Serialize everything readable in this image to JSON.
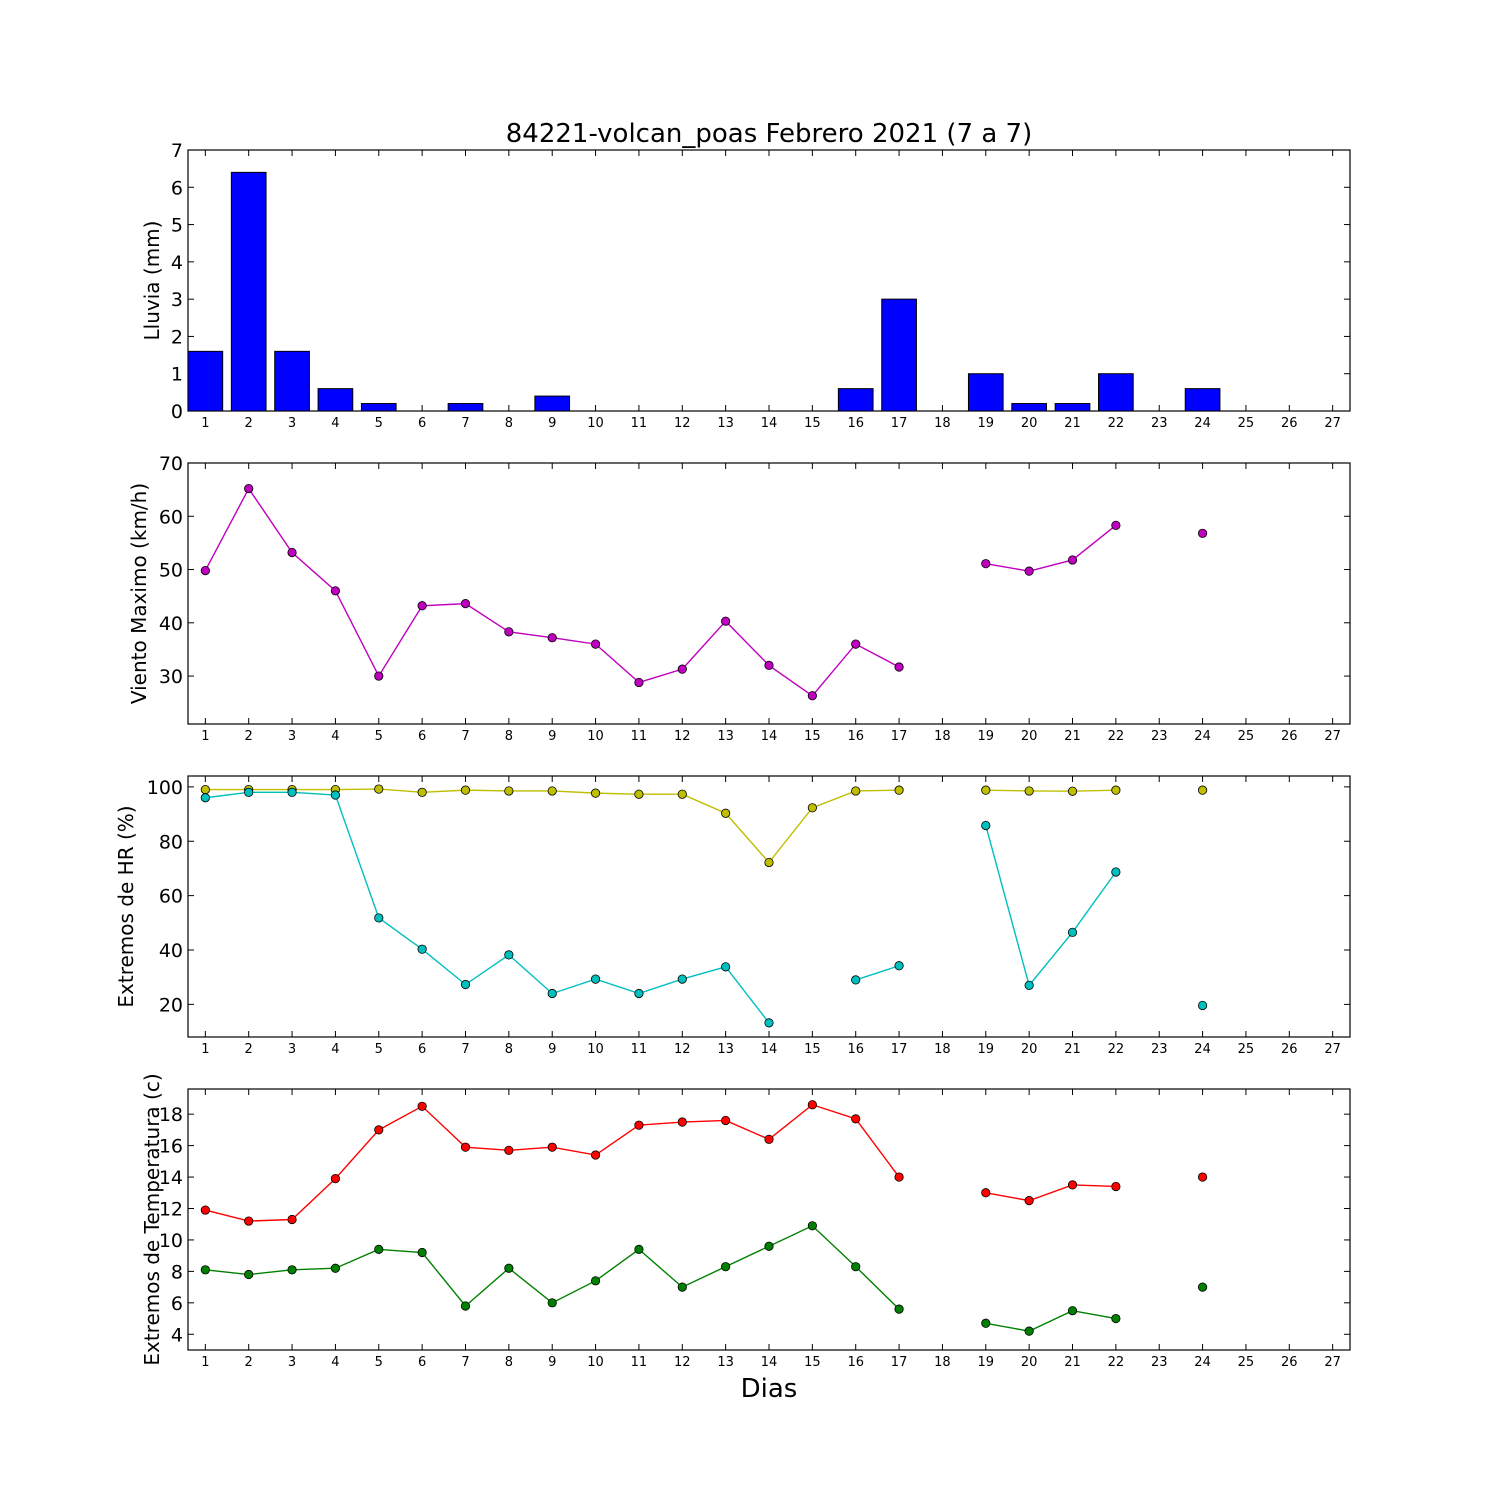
{
  "chart_data": [
    {
      "type": "bar",
      "title": "84221-volcan_poas Febrero 2021  (7 a 7)",
      "ylabel": "Lluvia (mm)",
      "ylim": [
        0,
        7
      ],
      "yticks": [
        0,
        1,
        2,
        3,
        4,
        5,
        6,
        7
      ],
      "categories": [
        "1",
        "2",
        "3",
        "4",
        "5",
        "6",
        "7",
        "8",
        "9",
        "10",
        "11",
        "12",
        "13",
        "14",
        "15",
        "16",
        "17",
        "18",
        "19",
        "20",
        "21",
        "22",
        "23",
        "24",
        "25",
        "26",
        "27"
      ],
      "values": [
        1.6,
        6.4,
        1.6,
        0.6,
        0.2,
        0,
        0.2,
        0,
        0.4,
        0,
        0,
        0,
        0,
        0,
        0,
        0.6,
        3.0,
        null,
        1.0,
        0.2,
        0.2,
        1.0,
        null,
        0.6,
        null,
        null,
        null
      ],
      "color": "#0000ff"
    },
    {
      "type": "line",
      "ylabel": "Viento Maximo (km/h)",
      "ylim": [
        21,
        70
      ],
      "yticks": [
        30,
        40,
        50,
        60,
        70
      ],
      "x": [
        1,
        2,
        3,
        4,
        5,
        6,
        7,
        8,
        9,
        10,
        11,
        12,
        13,
        14,
        15,
        16,
        17,
        18,
        19,
        20,
        21,
        22,
        23,
        24,
        25,
        26,
        27
      ],
      "series": [
        {
          "color": "#bf00bf",
          "values": [
            49.8,
            65.2,
            53.2,
            46.0,
            30.0,
            43.2,
            43.6,
            38.3,
            37.2,
            36.0,
            28.8,
            31.3,
            40.3,
            32.0,
            26.3,
            36.0,
            31.7,
            null,
            51.1,
            49.7,
            51.8,
            58.3,
            null,
            56.8,
            null,
            null,
            null
          ]
        }
      ]
    },
    {
      "type": "line",
      "ylabel": "Extremos de HR (%)",
      "ylim": [
        8,
        104
      ],
      "yticks": [
        20,
        40,
        60,
        80,
        100
      ],
      "x": [
        1,
        2,
        3,
        4,
        5,
        6,
        7,
        8,
        9,
        10,
        11,
        12,
        13,
        14,
        15,
        16,
        17,
        18,
        19,
        20,
        21,
        22,
        23,
        24,
        25,
        26,
        27
      ],
      "series": [
        {
          "color": "#bfbf00",
          "values": [
            99.0,
            99.0,
            99.0,
            99.0,
            99.2,
            98.0,
            98.8,
            98.5,
            98.5,
            97.7,
            97.3,
            97.3,
            90.3,
            72.2,
            92.3,
            98.5,
            98.8,
            null,
            98.8,
            98.5,
            98.4,
            98.8,
            null,
            98.8,
            null,
            null,
            null
          ]
        },
        {
          "color": "#00bfbf",
          "values": [
            96.0,
            98.0,
            98.0,
            97.0,
            51.8,
            40.3,
            27.3,
            38.2,
            24.0,
            29.3,
            24.0,
            29.3,
            33.8,
            13.2,
            null,
            29.0,
            34.2,
            null,
            85.8,
            27.0,
            46.5,
            68.7,
            null,
            19.6,
            null,
            null,
            null
          ]
        }
      ]
    },
    {
      "type": "line",
      "ylabel": "Extremos de Temperatura (c)",
      "xlabel": "Dias",
      "ylim": [
        3.0,
        19.6
      ],
      "yticks": [
        4,
        6,
        8,
        10,
        12,
        14,
        16,
        18
      ],
      "x": [
        1,
        2,
        3,
        4,
        5,
        6,
        7,
        8,
        9,
        10,
        11,
        12,
        13,
        14,
        15,
        16,
        17,
        18,
        19,
        20,
        21,
        22,
        23,
        24,
        25,
        26,
        27
      ],
      "series": [
        {
          "color": "#ff0000",
          "values": [
            11.9,
            11.2,
            11.3,
            13.9,
            17.0,
            18.5,
            15.9,
            15.7,
            15.9,
            15.4,
            17.3,
            17.5,
            17.6,
            16.4,
            18.6,
            17.7,
            14.0,
            null,
            13.0,
            12.5,
            13.5,
            13.4,
            null,
            14.0,
            null,
            null,
            null
          ]
        },
        {
          "color": "#008000",
          "values": [
            8.1,
            7.8,
            8.1,
            8.2,
            9.4,
            9.2,
            5.8,
            8.2,
            6.0,
            7.4,
            9.4,
            7.0,
            8.3,
            9.6,
            10.9,
            8.3,
            5.6,
            null,
            4.7,
            4.2,
            5.5,
            5.0,
            null,
            7.0,
            null,
            null,
            null
          ]
        }
      ]
    }
  ]
}
